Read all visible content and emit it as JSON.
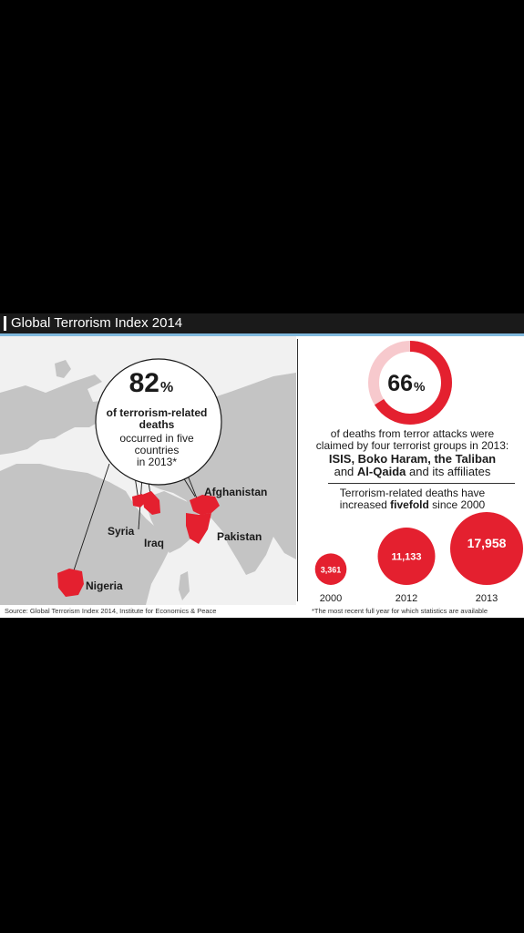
{
  "title": "Global Terrorism Index 2014",
  "colors": {
    "accent": "#e4202f",
    "map_land": "#c4c4c4",
    "map_bg": "#f1f1f1",
    "header": "#1a1a1a"
  },
  "left_panel": {
    "stat_number": "82",
    "stat_unit": "%",
    "stat_line1": "of terrorism-related",
    "stat_line2": "deaths",
    "stat_line3": "occurred in five",
    "stat_line4": "countries",
    "stat_line5": "in 2013*",
    "countries": [
      "Afghanistan",
      "Syria",
      "Iraq",
      "Pakistan",
      "Nigeria"
    ]
  },
  "right_panel": {
    "stat_number": "66",
    "stat_unit": "%",
    "line1": "of deaths from terror attacks were",
    "line2": "claimed by four terrorist groups in 2013:",
    "groups_line": "ISIS, Boko Haram, the Taliban",
    "groups_and": "and",
    "group4": "Al-Qaida",
    "group4_suffix": "and its affiliates",
    "increase_line1": "Terrorism-related deaths have",
    "increase_line2_pre": "increased",
    "increase_bold": "fivefold",
    "increase_line2_post": "since 2000"
  },
  "chart_data": {
    "type": "bubble",
    "x": [
      "2000",
      "2012",
      "2013"
    ],
    "values": [
      3361,
      11133,
      17958
    ],
    "value_labels": [
      "3,361",
      "11,133",
      "17,958"
    ],
    "donut_percent": 66
  },
  "source": "Source: Global Terrorism Index 2014, Institute for Economics & Peace",
  "footnote": "*The most recent full year for which statistics are available"
}
